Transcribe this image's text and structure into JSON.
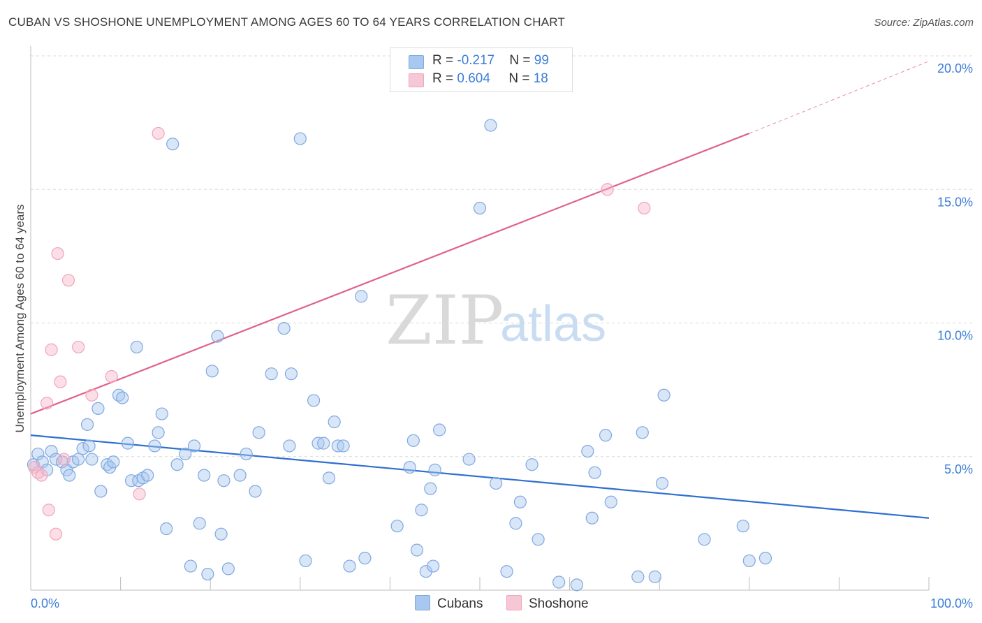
{
  "header": {
    "title": "CUBAN VS SHOSHONE UNEMPLOYMENT AMONG AGES 60 TO 64 YEARS CORRELATION CHART",
    "source": "Source: ZipAtlas.com"
  },
  "watermark": {
    "zip": "ZIP",
    "atlas": "atlas"
  },
  "legend": {
    "rows": [
      {
        "r_label": "R = ",
        "r_value": "-0.217",
        "n_label": "N = ",
        "n_value": "99",
        "color": "#a9c8f0"
      },
      {
        "r_label": "R = ",
        "r_value": "0.604",
        "n_label": "N = ",
        "n_value": "18",
        "color": "#f6b6c8"
      }
    ]
  },
  "bottom_legend": [
    {
      "label": "Cubans",
      "color": "#a9c8f0"
    },
    {
      "label": "Shoshone",
      "color": "#f6b6c8"
    }
  ],
  "chart_data": {
    "type": "scatter",
    "title": "CUBAN VS SHOSHONE UNEMPLOYMENT AMONG AGES 60 TO 64 YEARS CORRELATION CHART",
    "ylabel": "Unemployment Among Ages 60 to 64 years",
    "xlabel": "",
    "xlim": [
      0,
      100
    ],
    "ylim": [
      0,
      20
    ],
    "x_tick_labels": [
      "0.0%",
      "100.0%"
    ],
    "y_tick_labels": [
      "5.0%",
      "10.0%",
      "15.0%",
      "20.0%"
    ],
    "y_ticks": [
      5,
      10,
      15,
      20
    ],
    "grid": true,
    "legend_placement": "top-center",
    "series": [
      {
        "name": "Cubans",
        "color": "#7fb0ea",
        "line_color": "#2e6fd0",
        "trend": {
          "x": [
            0,
            100
          ],
          "y": [
            5.8,
            2.7
          ]
        },
        "points": [
          [
            0.3,
            4.7
          ],
          [
            0.8,
            5.1
          ],
          [
            1.3,
            4.8
          ],
          [
            1.8,
            4.5
          ],
          [
            2.3,
            5.2
          ],
          [
            2.8,
            4.9
          ],
          [
            3.5,
            4.8
          ],
          [
            4.0,
            4.5
          ],
          [
            4.3,
            4.3
          ],
          [
            4.7,
            4.8
          ],
          [
            5.3,
            4.9
          ],
          [
            5.8,
            5.3
          ],
          [
            6.3,
            6.2
          ],
          [
            6.5,
            5.4
          ],
          [
            6.8,
            4.9
          ],
          [
            7.5,
            6.8
          ],
          [
            7.8,
            3.7
          ],
          [
            8.5,
            4.7
          ],
          [
            8.8,
            4.6
          ],
          [
            9.2,
            4.8
          ],
          [
            9.8,
            7.3
          ],
          [
            10.2,
            7.2
          ],
          [
            10.8,
            5.5
          ],
          [
            11.2,
            4.1
          ],
          [
            11.8,
            9.1
          ],
          [
            12.0,
            4.1
          ],
          [
            12.5,
            4.2
          ],
          [
            13.0,
            4.3
          ],
          [
            13.8,
            5.4
          ],
          [
            14.2,
            5.9
          ],
          [
            14.6,
            6.6
          ],
          [
            15.1,
            2.3
          ],
          [
            15.8,
            16.7
          ],
          [
            16.3,
            4.7
          ],
          [
            17.2,
            5.1
          ],
          [
            17.8,
            0.9
          ],
          [
            18.2,
            5.4
          ],
          [
            18.8,
            2.5
          ],
          [
            19.3,
            4.3
          ],
          [
            19.7,
            0.6
          ],
          [
            20.2,
            8.2
          ],
          [
            20.8,
            9.5
          ],
          [
            21.2,
            2.1
          ],
          [
            21.5,
            4.1
          ],
          [
            22.0,
            0.8
          ],
          [
            23.3,
            4.3
          ],
          [
            24.0,
            5.1
          ],
          [
            25.0,
            3.7
          ],
          [
            25.4,
            5.9
          ],
          [
            26.8,
            8.1
          ],
          [
            28.2,
            9.8
          ],
          [
            28.8,
            5.4
          ],
          [
            29.0,
            8.1
          ],
          [
            30.0,
            16.9
          ],
          [
            30.6,
            1.1
          ],
          [
            31.5,
            7.1
          ],
          [
            32.0,
            5.5
          ],
          [
            32.6,
            5.5
          ],
          [
            33.2,
            4.2
          ],
          [
            33.8,
            6.3
          ],
          [
            34.2,
            5.4
          ],
          [
            34.8,
            5.4
          ],
          [
            35.5,
            0.9
          ],
          [
            36.8,
            11.0
          ],
          [
            37.2,
            1.2
          ],
          [
            40.8,
            2.4
          ],
          [
            42.2,
            4.6
          ],
          [
            42.6,
            5.6
          ],
          [
            43.0,
            1.5
          ],
          [
            43.5,
            3.0
          ],
          [
            44.0,
            0.7
          ],
          [
            44.5,
            3.8
          ],
          [
            44.8,
            0.9
          ],
          [
            45.0,
            4.5
          ],
          [
            45.5,
            6.0
          ],
          [
            48.8,
            4.9
          ],
          [
            50.0,
            14.3
          ],
          [
            51.2,
            17.4
          ],
          [
            51.8,
            4.0
          ],
          [
            53.0,
            0.7
          ],
          [
            54.0,
            2.5
          ],
          [
            54.5,
            3.3
          ],
          [
            55.8,
            4.7
          ],
          [
            56.5,
            1.9
          ],
          [
            58.8,
            0.3
          ],
          [
            60.8,
            0.2
          ],
          [
            62.0,
            5.2
          ],
          [
            62.5,
            2.7
          ],
          [
            62.8,
            4.4
          ],
          [
            64.0,
            5.8
          ],
          [
            64.6,
            3.3
          ],
          [
            67.6,
            0.5
          ],
          [
            68.1,
            5.9
          ],
          [
            69.5,
            0.5
          ],
          [
            70.3,
            4.0
          ],
          [
            70.5,
            7.3
          ],
          [
            75.0,
            1.9
          ],
          [
            79.3,
            2.4
          ],
          [
            80.0,
            1.1
          ],
          [
            81.8,
            1.2
          ]
        ]
      },
      {
        "name": "Shoshone",
        "color": "#f4a3bd",
        "line_color": "#e0628b",
        "trend": {
          "x": [
            0,
            80
          ],
          "y": [
            6.6,
            17.1
          ]
        },
        "trend_extension": {
          "x": [
            80,
            100
          ],
          "y": [
            17.1,
            19.8
          ]
        },
        "points": [
          [
            0.4,
            4.6
          ],
          [
            0.8,
            4.4
          ],
          [
            1.2,
            4.3
          ],
          [
            1.8,
            7.0
          ],
          [
            2.0,
            3.0
          ],
          [
            2.3,
            9.0
          ],
          [
            2.8,
            2.1
          ],
          [
            3.0,
            12.6
          ],
          [
            3.3,
            7.8
          ],
          [
            3.7,
            4.9
          ],
          [
            4.2,
            11.6
          ],
          [
            5.3,
            9.1
          ],
          [
            6.8,
            7.3
          ],
          [
            9.0,
            8.0
          ],
          [
            12.1,
            3.6
          ],
          [
            14.2,
            17.1
          ],
          [
            64.2,
            15.0
          ],
          [
            68.3,
            14.3
          ]
        ]
      }
    ]
  }
}
